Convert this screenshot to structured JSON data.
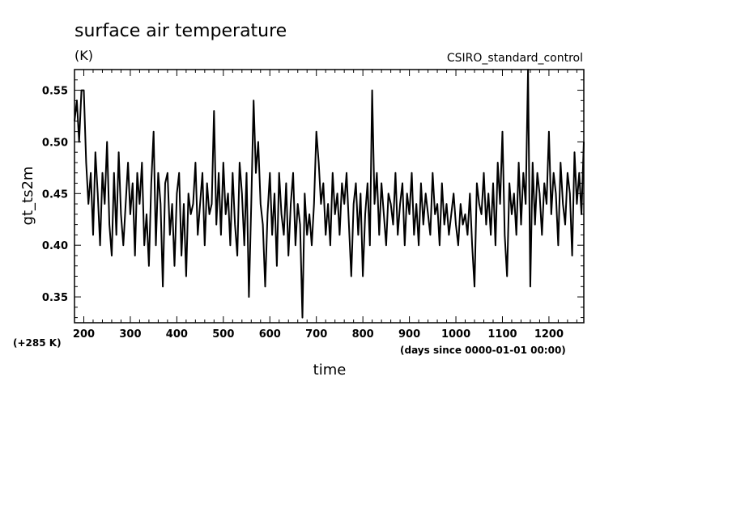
{
  "chart_data": {
    "type": "line",
    "title": "surface air temperature",
    "units": "(K)",
    "experiment": "CSIRO_standard_control",
    "xlabel": "time",
    "ylabel": "gt_ts2m",
    "x_units_note": "(days since 0000-01-01 00:00)",
    "y_offset_note": "(+285 K)",
    "xlim": [
      180,
      1275
    ],
    "ylim": [
      0.325,
      0.57
    ],
    "grid": false,
    "legend": "none",
    "line_color": "#000000",
    "x_ticks": [
      200,
      300,
      400,
      500,
      600,
      700,
      800,
      900,
      1000,
      1100,
      1200
    ],
    "y_ticks": [
      0.35,
      0.4,
      0.45,
      0.5,
      0.55
    ],
    "y_tick_labels": [
      "0.35",
      "0.40",
      "0.45",
      "0.50",
      "0.55"
    ],
    "series": [
      {
        "x": [
          180,
          185,
          190,
          195,
          200,
          205,
          210,
          215,
          220,
          225,
          230,
          235,
          240,
          245,
          250,
          255,
          260,
          265,
          270,
          275,
          280,
          285,
          290,
          295,
          300,
          305,
          310,
          315,
          320,
          325,
          330,
          335,
          340,
          345,
          350,
          355,
          360,
          365,
          370,
          375,
          380,
          385,
          390,
          395,
          400,
          405,
          410,
          415,
          420,
          425,
          430,
          435,
          440,
          445,
          450,
          455,
          460,
          465,
          470,
          475,
          480,
          485,
          490,
          495,
          500,
          505,
          510,
          515,
          520,
          525,
          530,
          535,
          540,
          545,
          550,
          555,
          560,
          565,
          570,
          575,
          580,
          585,
          590,
          595,
          600,
          605,
          610,
          615,
          620,
          625,
          630,
          635,
          640,
          645,
          650,
          655,
          660,
          665,
          670,
          675,
          680,
          685,
          690,
          695,
          700,
          705,
          710,
          715,
          720,
          725,
          730,
          735,
          740,
          745,
          750,
          755,
          760,
          765,
          770,
          775,
          780,
          785,
          790,
          795,
          800,
          805,
          810,
          815,
          820,
          825,
          830,
          835,
          840,
          845,
          850,
          855,
          860,
          865,
          870,
          875,
          880,
          885,
          890,
          895,
          900,
          905,
          910,
          915,
          920,
          925,
          930,
          935,
          940,
          945,
          950,
          955,
          960,
          965,
          970,
          975,
          980,
          985,
          990,
          995,
          1000,
          1005,
          1010,
          1015,
          1020,
          1025,
          1030,
          1035,
          1040,
          1045,
          1050,
          1055,
          1060,
          1065,
          1070,
          1075,
          1080,
          1085,
          1090,
          1095,
          1100,
          1105,
          1110,
          1115,
          1120,
          1125,
          1130,
          1135,
          1140,
          1145,
          1150,
          1155,
          1160,
          1165,
          1170,
          1175,
          1180,
          1185,
          1190,
          1195,
          1200,
          1205,
          1210,
          1215,
          1220,
          1225,
          1230,
          1235,
          1240,
          1245,
          1250,
          1255,
          1260,
          1265,
          1270,
          1275
        ],
        "y": [
          0.52,
          0.54,
          0.5,
          0.55,
          0.55,
          0.48,
          0.44,
          0.47,
          0.41,
          0.49,
          0.45,
          0.4,
          0.47,
          0.44,
          0.5,
          0.42,
          0.39,
          0.47,
          0.41,
          0.49,
          0.43,
          0.4,
          0.44,
          0.48,
          0.43,
          0.46,
          0.39,
          0.47,
          0.44,
          0.48,
          0.4,
          0.43,
          0.38,
          0.46,
          0.51,
          0.4,
          0.47,
          0.44,
          0.36,
          0.46,
          0.47,
          0.41,
          0.44,
          0.38,
          0.45,
          0.47,
          0.39,
          0.44,
          0.37,
          0.45,
          0.43,
          0.44,
          0.48,
          0.41,
          0.44,
          0.47,
          0.4,
          0.46,
          0.43,
          0.44,
          0.53,
          0.42,
          0.47,
          0.41,
          0.48,
          0.43,
          0.45,
          0.4,
          0.47,
          0.42,
          0.39,
          0.48,
          0.45,
          0.4,
          0.47,
          0.35,
          0.44,
          0.54,
          0.47,
          0.5,
          0.44,
          0.42,
          0.36,
          0.43,
          0.47,
          0.41,
          0.45,
          0.38,
          0.47,
          0.43,
          0.41,
          0.46,
          0.39,
          0.44,
          0.47,
          0.4,
          0.44,
          0.42,
          0.33,
          0.45,
          0.41,
          0.43,
          0.4,
          0.44,
          0.51,
          0.48,
          0.44,
          0.46,
          0.41,
          0.44,
          0.4,
          0.47,
          0.43,
          0.45,
          0.41,
          0.46,
          0.44,
          0.47,
          0.42,
          0.37,
          0.44,
          0.46,
          0.41,
          0.45,
          0.37,
          0.43,
          0.46,
          0.4,
          0.55,
          0.44,
          0.47,
          0.41,
          0.46,
          0.43,
          0.4,
          0.45,
          0.44,
          0.42,
          0.47,
          0.41,
          0.44,
          0.46,
          0.4,
          0.45,
          0.43,
          0.47,
          0.41,
          0.44,
          0.4,
          0.46,
          0.42,
          0.45,
          0.43,
          0.41,
          0.47,
          0.43,
          0.44,
          0.4,
          0.46,
          0.42,
          0.44,
          0.41,
          0.43,
          0.45,
          0.42,
          0.4,
          0.44,
          0.42,
          0.43,
          0.41,
          0.45,
          0.4,
          0.36,
          0.46,
          0.44,
          0.43,
          0.47,
          0.42,
          0.45,
          0.41,
          0.46,
          0.4,
          0.48,
          0.44,
          0.51,
          0.41,
          0.37,
          0.46,
          0.43,
          0.45,
          0.41,
          0.48,
          0.42,
          0.47,
          0.44,
          0.57,
          0.36,
          0.48,
          0.42,
          0.47,
          0.45,
          0.41,
          0.46,
          0.44,
          0.51,
          0.43,
          0.47,
          0.45,
          0.4,
          0.48,
          0.44,
          0.42,
          0.47,
          0.45,
          0.39,
          0.49,
          0.44,
          0.47,
          0.43,
          0.5
        ]
      }
    ]
  }
}
